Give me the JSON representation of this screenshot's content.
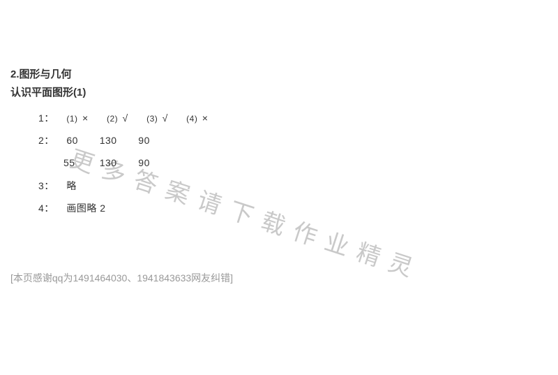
{
  "headings": {
    "section": "2.图形与几何",
    "subsection": "认识平面图形(1)"
  },
  "answers": {
    "row1": {
      "num": "1：",
      "parts": [
        {
          "sub": "(1)",
          "val": "×"
        },
        {
          "sub": "(2)",
          "val": "√"
        },
        {
          "sub": "(3)",
          "val": "√"
        },
        {
          "sub": "(4)",
          "val": "×"
        }
      ]
    },
    "row2": {
      "num": "2：",
      "line1": [
        "60",
        "130",
        "90"
      ],
      "line2": [
        "55",
        "130",
        "90"
      ]
    },
    "row3": {
      "num": "3：",
      "text": "略"
    },
    "row4": {
      "num": "4：",
      "text": " 画图略   2"
    }
  },
  "footer": "[本页感谢qq为1491464030、1941843633网友纠错]",
  "watermark": "更多答案请下载作业精灵",
  "colors": {
    "text": "#333333",
    "footer": "#999999",
    "watermark": "#b8b8b8",
    "background": "#ffffff"
  },
  "fontsizes": {
    "heading": 15,
    "body": 14,
    "sub": 12,
    "footer": 14,
    "watermark": 34
  }
}
